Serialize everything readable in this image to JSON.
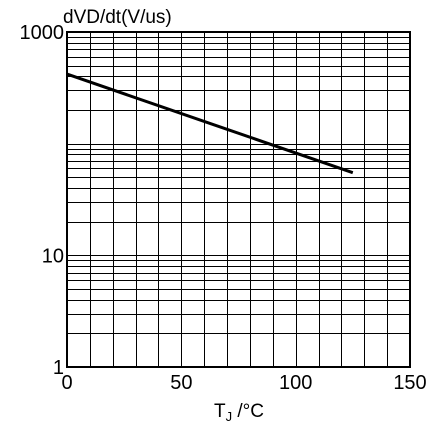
{
  "chart_data": {
    "type": "line",
    "title": "",
    "xlabel": "T",
    "xlabel_subscript": "J",
    "xlabel_unit": " /°C",
    "ylabel": "dVD/dt(V/us)",
    "x_scale": "linear",
    "y_scale": "log",
    "xlim": [
      0,
      150
    ],
    "ylim": [
      1,
      1000
    ],
    "x_ticks": [
      0,
      50,
      100,
      150
    ],
    "x_tick_labels": [
      "0",
      "50",
      "100",
      "150"
    ],
    "y_ticks": [
      1,
      10,
      1000
    ],
    "y_tick_labels": [
      "1",
      "10",
      "1000"
    ],
    "grid": true,
    "series": [
      {
        "x": [
          0,
          125
        ],
        "y": [
          420,
          55
        ]
      }
    ]
  }
}
